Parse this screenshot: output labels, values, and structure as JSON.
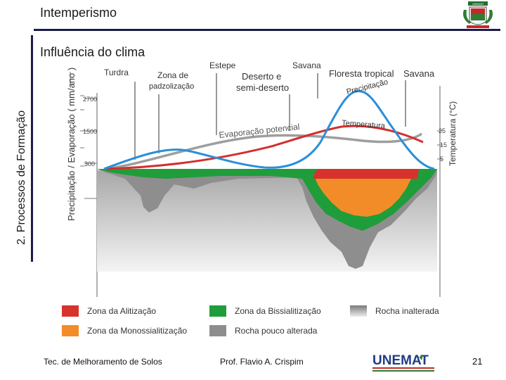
{
  "header": {
    "title": "Intemperismo",
    "subtitle": "Influência do clima",
    "side_label": "2. Processos de Formação"
  },
  "logo": {
    "text": "UNEMAT"
  },
  "diagram": {
    "biomes": [
      "Turdra",
      "Zona de",
      "padzolização",
      "Estepe",
      "Deserto e",
      "semi-deserto",
      "Savana",
      "Floresta tropical",
      "Savana"
    ],
    "y_left_label": "Precipitação / Evaporação ( mm/ano )",
    "y_left_ticks": [
      "2700",
      "1500",
      "300"
    ],
    "y_right_label": "Temperatura (°C)",
    "y_right_ticks": [
      "25",
      "15",
      "5"
    ],
    "curve_labels": {
      "precipitation": "Precipitação",
      "temperature": "Temperatura",
      "evaporation": "Evaporação potencial"
    },
    "colors": {
      "precipitation": "#2a8fd8",
      "temperature": "#d32f2f",
      "evaporation": "#9e9e9e",
      "alitizacao": "#d7322c",
      "bissialitizacao": "#1f9d3a",
      "monossialitizacao": "#f28c28",
      "rock_altered": "#8e8e8e"
    },
    "legend": [
      {
        "id": "alitizacao",
        "label": "Zona da Alitização"
      },
      {
        "id": "bissialitizacao",
        "label": "Zona da Bissialitização"
      },
      {
        "id": "rocha-inalterada",
        "label": "Rocha inalterada"
      },
      {
        "id": "monossialitizacao",
        "label": "Zona da Monossialitização"
      },
      {
        "id": "rocha-pouco-alterada",
        "label": "Rocha pouco alterada"
      }
    ]
  },
  "footer": {
    "left": "Tec. de Melhoramento de Solos",
    "center": "Prof. Flavio  A. Crispim",
    "page": "21"
  },
  "unemat": {
    "name": "UNEMAT"
  }
}
